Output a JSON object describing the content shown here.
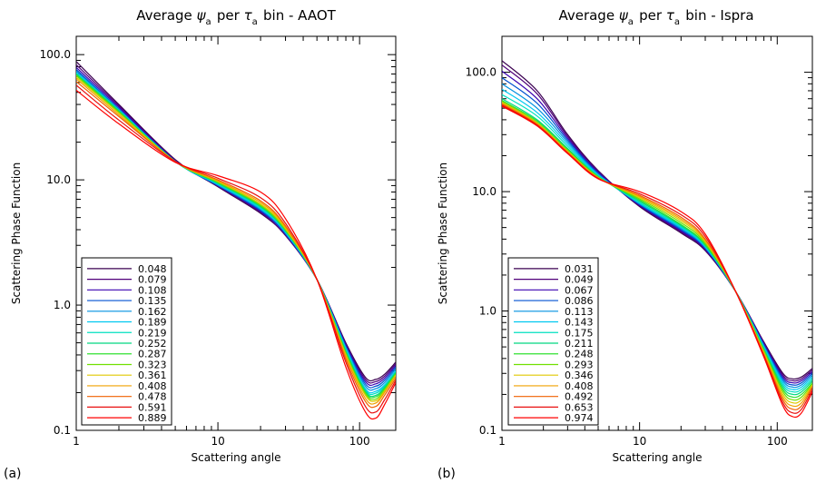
{
  "chart_data": [
    {
      "type": "line",
      "panel_label": "(a)",
      "title_parts": {
        "pre": "Average ",
        "psi": "ψ",
        "sub1": "a",
        "mid": " per ",
        "tau": "τ",
        "sub2": "a",
        "post": " bin - AAOT"
      },
      "xlabel": "Scattering angle",
      "ylabel": "Scattering Phase Function",
      "xscale": "log",
      "yscale": "log",
      "xlim": [
        1,
        180
      ],
      "ylim": [
        0.1,
        140
      ],
      "xticks": [
        {
          "v": 1,
          "label": "1"
        },
        {
          "v": 10,
          "label": "10"
        },
        {
          "v": 100,
          "label": "100"
        }
      ],
      "yticks": [
        {
          "v": 0.1,
          "label": "0.1"
        },
        {
          "v": 1,
          "label": "1.0"
        },
        {
          "v": 10,
          "label": "10.0"
        },
        {
          "v": 100,
          "label": "100.0"
        }
      ],
      "legend_position": "bottom-left",
      "x": [
        1,
        2,
        5,
        10,
        20,
        30,
        50,
        80,
        110,
        130,
        150,
        180
      ],
      "series": [
        {
          "name": "0.048",
          "color": "#3a0050",
          "values": [
            88,
            40,
            14.5,
            8.8,
            5.4,
            3.6,
            1.6,
            0.5,
            0.265,
            0.255,
            0.28,
            0.35
          ]
        },
        {
          "name": "0.079",
          "color": "#50007a",
          "values": [
            83,
            39,
            14.3,
            8.9,
            5.5,
            3.6,
            1.6,
            0.49,
            0.255,
            0.245,
            0.27,
            0.34
          ]
        },
        {
          "name": "0.108",
          "color": "#3a00b0",
          "values": [
            79,
            38,
            14.2,
            9.0,
            5.6,
            3.7,
            1.6,
            0.48,
            0.245,
            0.235,
            0.26,
            0.33
          ]
        },
        {
          "name": "0.135",
          "color": "#0050d0",
          "values": [
            76,
            37,
            14.1,
            9.0,
            5.7,
            3.7,
            1.6,
            0.47,
            0.235,
            0.225,
            0.25,
            0.32
          ]
        },
        {
          "name": "0.162",
          "color": "#0090e0",
          "values": [
            74,
            36.5,
            14.0,
            9.1,
            5.8,
            3.8,
            1.6,
            0.46,
            0.225,
            0.215,
            0.24,
            0.31
          ]
        },
        {
          "name": "0.189",
          "color": "#00c8f0",
          "values": [
            72,
            36,
            14.0,
            9.2,
            5.9,
            3.8,
            1.6,
            0.45,
            0.215,
            0.205,
            0.23,
            0.3
          ]
        },
        {
          "name": "0.219",
          "color": "#00e0c0",
          "values": [
            71,
            36,
            14.0,
            9.3,
            6.0,
            3.9,
            1.6,
            0.44,
            0.21,
            0.198,
            0.225,
            0.295
          ]
        },
        {
          "name": "0.252",
          "color": "#00d880",
          "values": [
            70,
            35.5,
            14.0,
            9.4,
            6.1,
            3.9,
            1.6,
            0.43,
            0.205,
            0.19,
            0.22,
            0.29
          ]
        },
        {
          "name": "0.287",
          "color": "#30e030",
          "values": [
            69,
            35,
            14.0,
            9.5,
            6.2,
            4.0,
            1.6,
            0.42,
            0.2,
            0.185,
            0.215,
            0.285
          ]
        },
        {
          "name": "0.323",
          "color": "#70e000",
          "values": [
            68,
            34.5,
            14.0,
            9.6,
            6.3,
            4.0,
            1.6,
            0.41,
            0.195,
            0.178,
            0.21,
            0.28
          ]
        },
        {
          "name": "0.361",
          "color": "#e0c800",
          "values": [
            66,
            34,
            14.0,
            9.7,
            6.4,
            4.1,
            1.6,
            0.4,
            0.19,
            0.172,
            0.205,
            0.275
          ]
        },
        {
          "name": "0.408",
          "color": "#f0a000",
          "values": [
            64,
            33,
            14.0,
            9.8,
            6.6,
            4.2,
            1.6,
            0.39,
            0.18,
            0.165,
            0.2,
            0.27
          ]
        },
        {
          "name": "0.478",
          "color": "#f06000",
          "values": [
            61,
            32,
            14.0,
            10.0,
            6.8,
            4.3,
            1.6,
            0.37,
            0.17,
            0.155,
            0.19,
            0.26
          ]
        },
        {
          "name": "0.591",
          "color": "#e81010",
          "values": [
            57,
            30,
            14.0,
            10.3,
            7.2,
            4.5,
            1.6,
            0.35,
            0.155,
            0.14,
            0.175,
            0.25
          ]
        },
        {
          "name": "0.889",
          "color": "#ff0000",
          "values": [
            52,
            28,
            13.8,
            10.8,
            8.0,
            4.9,
            1.6,
            0.32,
            0.14,
            0.125,
            0.16,
            0.24
          ]
        }
      ]
    },
    {
      "type": "line",
      "panel_label": "(b)",
      "title_parts": {
        "pre": "Average ",
        "psi": "ψ",
        "sub1": "a",
        "mid": " per ",
        "tau": "τ",
        "sub2": "a",
        "post": " bin - Ispra"
      },
      "xlabel": "Scattering angle",
      "ylabel": "Scattering Phase Function",
      "xscale": "log",
      "yscale": "log",
      "xlim": [
        1,
        180
      ],
      "ylim": [
        0.1,
        200
      ],
      "xticks": [
        {
          "v": 1,
          "label": "1"
        },
        {
          "v": 10,
          "label": "10"
        },
        {
          "v": 100,
          "label": "100"
        }
      ],
      "yticks": [
        {
          "v": 0.1,
          "label": "0.1"
        },
        {
          "v": 1,
          "label": "1.0"
        },
        {
          "v": 10,
          "label": "10.0"
        },
        {
          "v": 100,
          "label": "100.0"
        }
      ],
      "legend_position": "bottom-left",
      "x": [
        1,
        1.8,
        3,
        5,
        10,
        20,
        30,
        50,
        80,
        110,
        130,
        150,
        180
      ],
      "series": [
        {
          "name": "0.031",
          "color": "#3a0050",
          "values": [
            125,
            70,
            30,
            15,
            7.5,
            4.5,
            3.2,
            1.45,
            0.55,
            0.3,
            0.27,
            0.28,
            0.33
          ]
        },
        {
          "name": "0.049",
          "color": "#50007a",
          "values": [
            115,
            66,
            29,
            14.8,
            7.6,
            4.6,
            3.25,
            1.45,
            0.54,
            0.29,
            0.26,
            0.27,
            0.32
          ]
        },
        {
          "name": "0.067",
          "color": "#3a00b0",
          "values": [
            102,
            60,
            28,
            14.5,
            7.7,
            4.7,
            3.3,
            1.45,
            0.53,
            0.28,
            0.25,
            0.26,
            0.31
          ]
        },
        {
          "name": "0.086",
          "color": "#0050d0",
          "values": [
            90,
            55,
            27,
            14.2,
            7.8,
            4.8,
            3.35,
            1.45,
            0.52,
            0.27,
            0.24,
            0.25,
            0.3
          ]
        },
        {
          "name": "0.113",
          "color": "#0090e0",
          "values": [
            80,
            50,
            26,
            14.0,
            7.9,
            4.9,
            3.4,
            1.45,
            0.51,
            0.26,
            0.23,
            0.24,
            0.29
          ]
        },
        {
          "name": "0.143",
          "color": "#00c8f0",
          "values": [
            72,
            46,
            25,
            13.8,
            8.0,
            5.0,
            3.45,
            1.45,
            0.5,
            0.25,
            0.22,
            0.23,
            0.28
          ]
        },
        {
          "name": "0.175",
          "color": "#00e0c0",
          "values": [
            65,
            43,
            24,
            13.6,
            8.1,
            5.1,
            3.5,
            1.45,
            0.49,
            0.24,
            0.21,
            0.22,
            0.27
          ]
        },
        {
          "name": "0.211",
          "color": "#00d880",
          "values": [
            60,
            40,
            23,
            13.4,
            8.3,
            5.2,
            3.55,
            1.45,
            0.48,
            0.23,
            0.2,
            0.21,
            0.26
          ]
        },
        {
          "name": "0.248",
          "color": "#30e030",
          "values": [
            58,
            39,
            22.5,
            13.3,
            8.5,
            5.3,
            3.6,
            1.45,
            0.47,
            0.22,
            0.19,
            0.2,
            0.25
          ]
        },
        {
          "name": "0.293",
          "color": "#70e000",
          "values": [
            57,
            38,
            22,
            13.2,
            8.7,
            5.5,
            3.7,
            1.45,
            0.46,
            0.21,
            0.18,
            0.19,
            0.245
          ]
        },
        {
          "name": "0.346",
          "color": "#e0c800",
          "values": [
            56,
            37.5,
            21.8,
            13.1,
            8.9,
            5.7,
            3.8,
            1.45,
            0.45,
            0.2,
            0.17,
            0.18,
            0.24
          ]
        },
        {
          "name": "0.408",
          "color": "#f0a000",
          "values": [
            55,
            37,
            21.5,
            13.0,
            9.1,
            5.9,
            3.9,
            1.45,
            0.44,
            0.19,
            0.16,
            0.17,
            0.235
          ]
        },
        {
          "name": "0.492",
          "color": "#f06000",
          "values": [
            54,
            36.5,
            21.3,
            13.0,
            9.3,
            6.1,
            4.0,
            1.45,
            0.43,
            0.18,
            0.15,
            0.16,
            0.23
          ]
        },
        {
          "name": "0.653",
          "color": "#e81010",
          "values": [
            53,
            36,
            21,
            12.9,
            9.6,
            6.4,
            4.2,
            1.45,
            0.42,
            0.17,
            0.14,
            0.15,
            0.22
          ]
        },
        {
          "name": "0.974",
          "color": "#ff0000",
          "values": [
            52,
            35.5,
            20.8,
            12.8,
            10.0,
            6.8,
            4.4,
            1.45,
            0.41,
            0.16,
            0.13,
            0.14,
            0.21
          ]
        }
      ]
    }
  ]
}
